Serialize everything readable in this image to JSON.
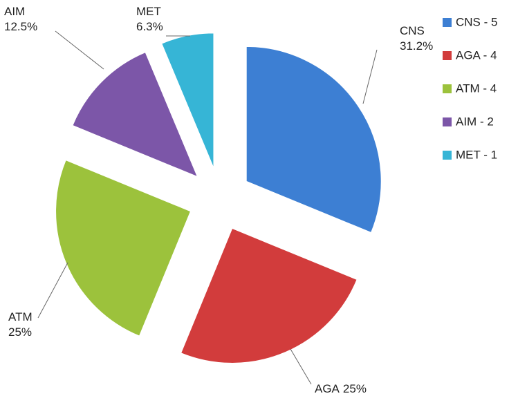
{
  "chart_data": {
    "type": "pie",
    "categories": [
      "CNS",
      "AGA",
      "ATM",
      "AIM",
      "MET"
    ],
    "values": [
      31.2,
      25,
      25,
      12.5,
      6.3
    ],
    "value_labels": [
      "31.2%",
      "25%",
      "25%",
      "12.5%",
      "6.3%"
    ],
    "colors": [
      "#3d7fd3",
      "#d23c3c",
      "#9cc23c",
      "#7c56a8",
      "#36b5d6"
    ],
    "legend_labels": [
      "CNS - 5",
      "AGA - 4",
      "ATM - 4",
      "AIM - 2",
      "MET - 1"
    ],
    "legend": "right"
  }
}
